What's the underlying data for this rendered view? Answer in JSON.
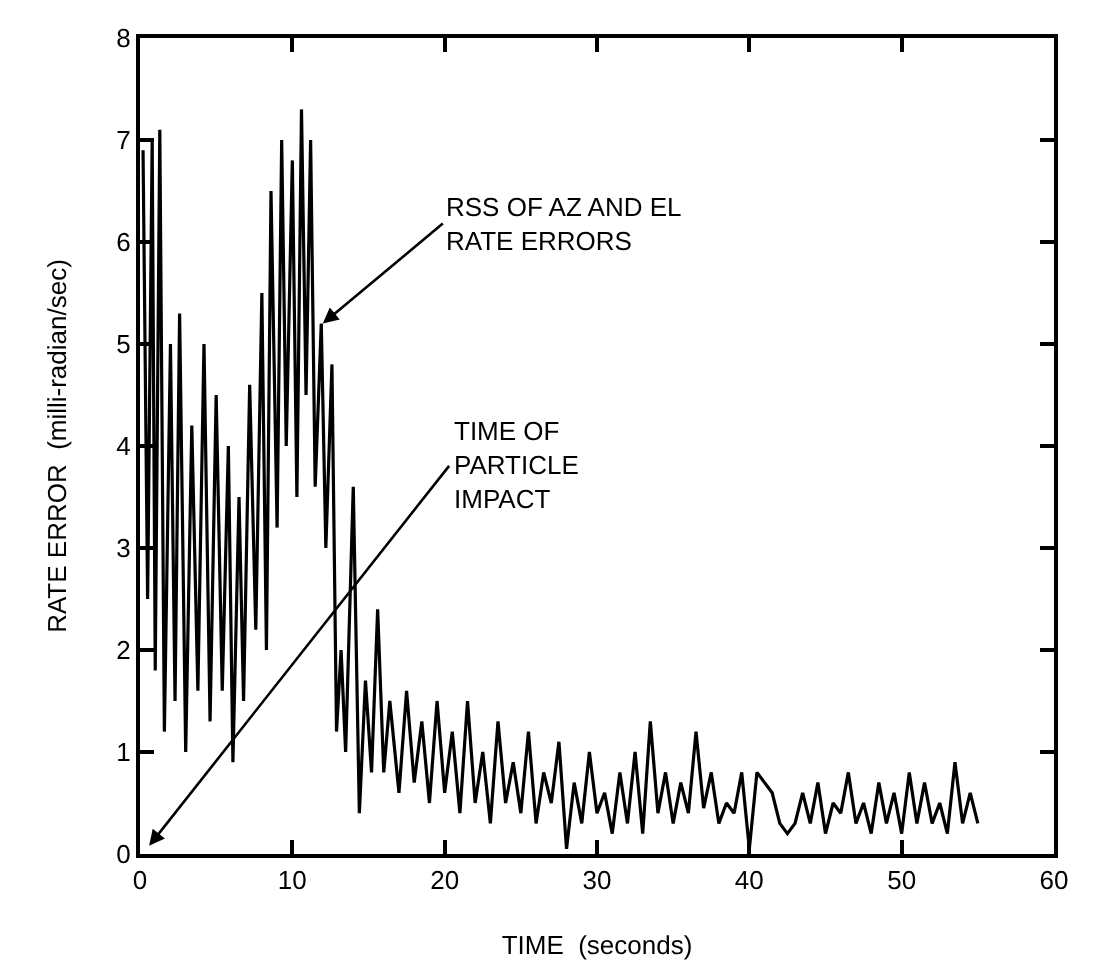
{
  "chart_data": {
    "type": "line",
    "xlabel": "TIME  (seconds)",
    "ylabel": "RATE ERROR  (milli-radian/sec)",
    "x": [
      0.2,
      0.5,
      0.8,
      1.0,
      1.3,
      1.6,
      2.0,
      2.3,
      2.6,
      3.0,
      3.4,
      3.8,
      4.2,
      4.6,
      5.0,
      5.4,
      5.8,
      6.1,
      6.5,
      6.8,
      7.2,
      7.6,
      8.0,
      8.3,
      8.6,
      9.0,
      9.3,
      9.6,
      10.0,
      10.3,
      10.6,
      10.9,
      11.2,
      11.5,
      11.9,
      12.2,
      12.6,
      12.9,
      13.2,
      13.5,
      14.0,
      14.4,
      14.8,
      15.2,
      15.6,
      16.0,
      16.4,
      17,
      17.5,
      18,
      18.5,
      19,
      19.5,
      20,
      20.5,
      21,
      21.5,
      22,
      22.5,
      23,
      23.5,
      24,
      24.5,
      25,
      25.5,
      26,
      26.5,
      27,
      27.5,
      28,
      28.5,
      29,
      29.5,
      30,
      30.5,
      31,
      31.5,
      32,
      32.5,
      33,
      33.5,
      34,
      34.5,
      35,
      35.5,
      36,
      36.5,
      37,
      37.5,
      38,
      38.5,
      39,
      39.5,
      40,
      40.5,
      41,
      41.5,
      42,
      42.5,
      43,
      43.5,
      44,
      44.5,
      45,
      45.5,
      46,
      46.5,
      47,
      47.5,
      48,
      48.5,
      49,
      49.5,
      50,
      50.5,
      51,
      51.5,
      52,
      52.5,
      53,
      53.5,
      54,
      54.5,
      55
    ],
    "series": [
      {
        "color": "#000000",
        "values": [
          6.9,
          2.5,
          7.0,
          1.8,
          7.1,
          1.2,
          5.0,
          1.5,
          5.3,
          1.0,
          4.2,
          1.6,
          5.0,
          1.3,
          4.5,
          1.6,
          4.0,
          0.9,
          3.5,
          1.5,
          4.6,
          2.2,
          5.5,
          2.0,
          6.5,
          3.2,
          7.0,
          4.0,
          6.8,
          3.5,
          7.3,
          4.5,
          7.0,
          3.6,
          5.2,
          3.0,
          4.8,
          1.2,
          2.0,
          1.0,
          3.6,
          0.4,
          1.7,
          0.8,
          2.4,
          0.8,
          1.5,
          0.6,
          1.6,
          0.7,
          1.3,
          0.5,
          1.5,
          0.6,
          1.2,
          0.4,
          1.5,
          0.5,
          1.0,
          0.3,
          1.3,
          0.5,
          0.9,
          0.4,
          1.2,
          0.3,
          0.8,
          0.5,
          1.1,
          0.05,
          0.7,
          0.3,
          1.0,
          0.4,
          0.6,
          0.2,
          0.8,
          0.3,
          1.0,
          0.2,
          1.3,
          0.4,
          0.8,
          0.3,
          0.7,
          0.4,
          1.2,
          0.45,
          0.8,
          0.3,
          0.5,
          0.4,
          0.8,
          0.05,
          0.8,
          0.7,
          0.6,
          0.3,
          0.2,
          0.3,
          0.6,
          0.3,
          0.7,
          0.2,
          0.5,
          0.4,
          0.8,
          0.3,
          0.5,
          0.2,
          0.7,
          0.3,
          0.6,
          0.2,
          0.8,
          0.3,
          0.7,
          0.3,
          0.5,
          0.2,
          0.9,
          0.3,
          0.6,
          0.3
        ]
      }
    ],
    "xlim": [
      0,
      60
    ],
    "xticks": [
      0,
      10,
      20,
      30,
      40,
      50,
      60
    ],
    "ylim": [
      0,
      8
    ],
    "yticks": [
      0,
      1,
      2,
      3,
      4,
      5,
      6,
      7,
      8
    ],
    "grid": false,
    "marker": "none",
    "line_style": "solid",
    "annotations": [
      {
        "text": "RSS OF AZ AND EL\nRATE ERRORS",
        "x": 12,
        "y": 5.2
      },
      "TIME OF\nPARTICLE\nIMPACT"
    ]
  }
}
